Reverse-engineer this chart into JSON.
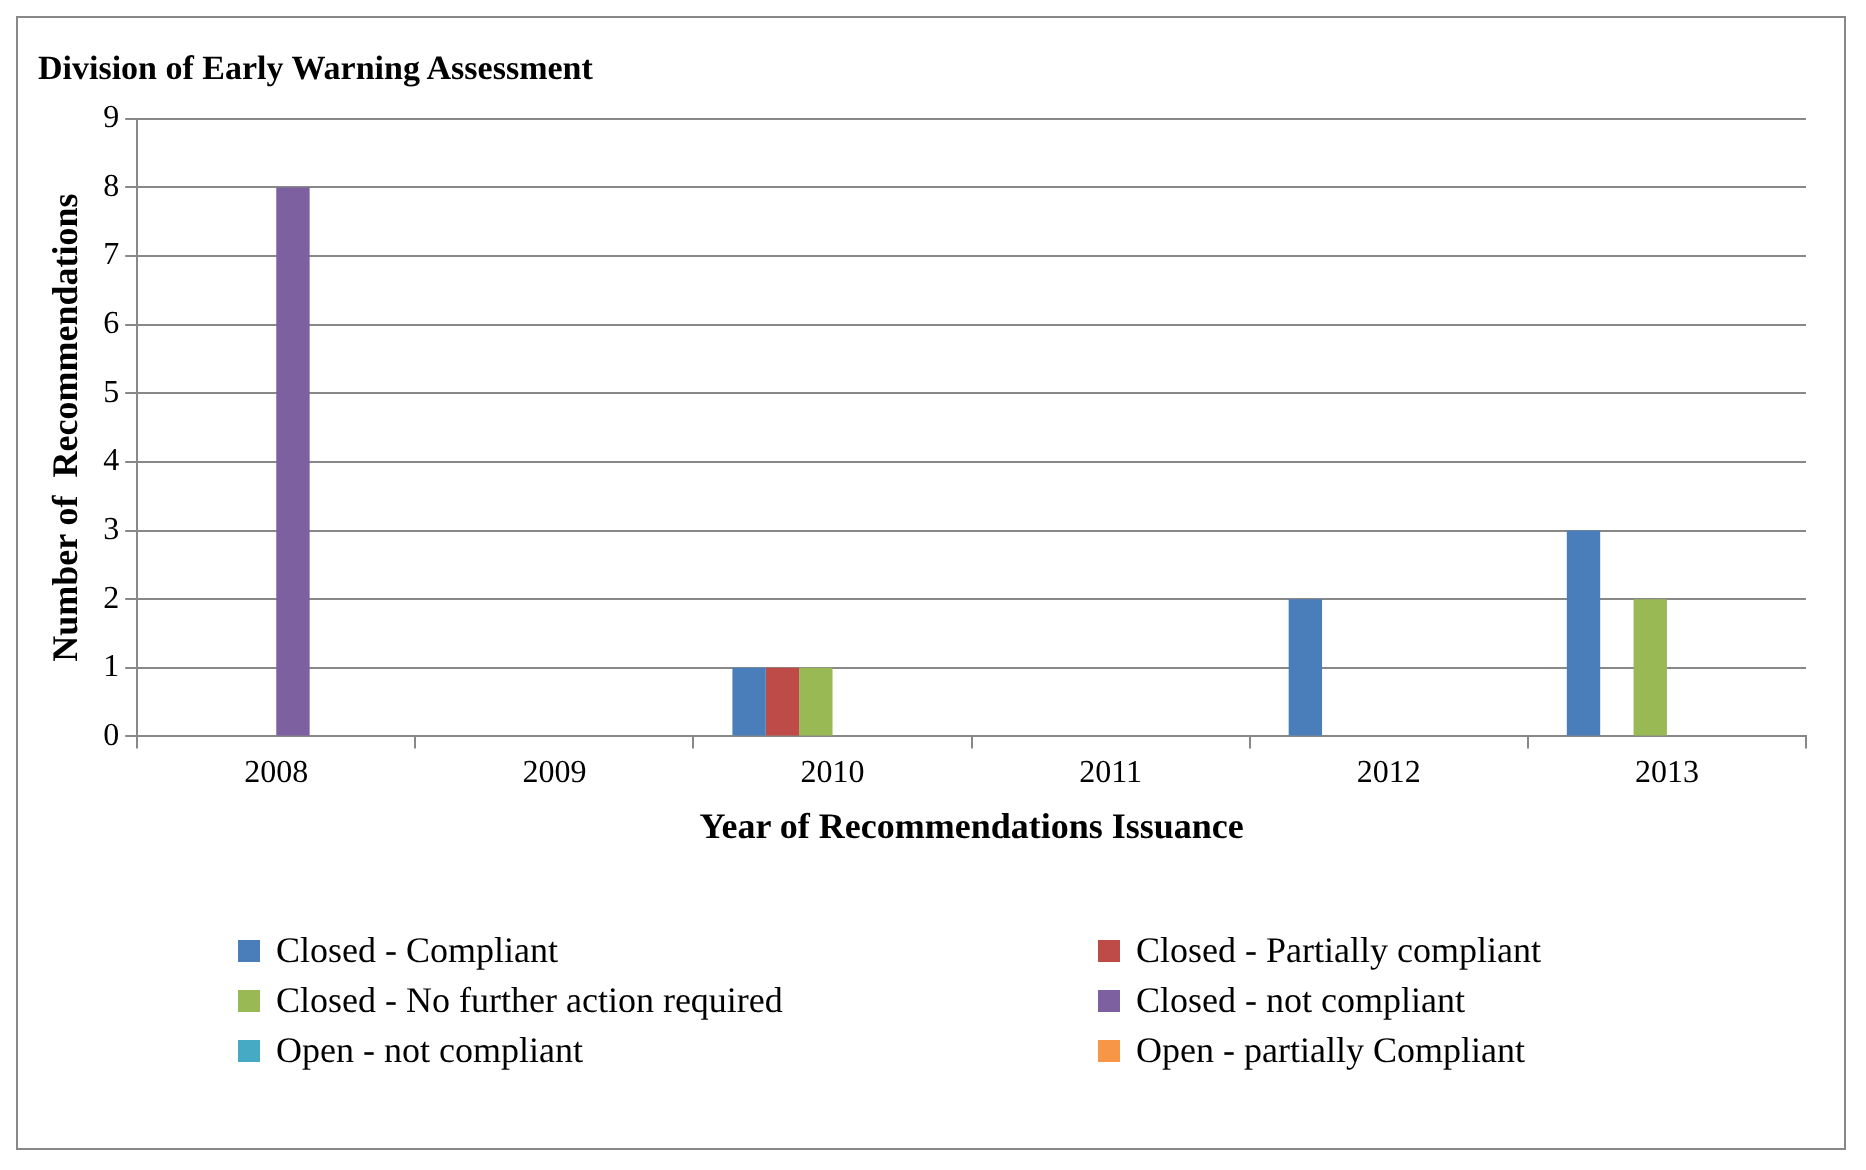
{
  "chart_data": {
    "type": "bar",
    "title": "Division of Early Warning Assessment",
    "xlabel": "Year of Recommendations Issuance",
    "ylabel": "Number of  Recommendations",
    "categories": [
      "2008",
      "2009",
      "2010",
      "2011",
      "2012",
      "2013"
    ],
    "series": [
      {
        "name": "Closed - Compliant",
        "color": "#4a7ebb",
        "values": [
          0,
          0,
          1,
          0,
          2,
          3
        ]
      },
      {
        "name": "Closed - Partially compliant",
        "color": "#be4b48",
        "values": [
          0,
          0,
          1,
          0,
          0,
          0
        ]
      },
      {
        "name": "Closed - No further action required",
        "color": "#98b954",
        "values": [
          0,
          0,
          1,
          0,
          0,
          2
        ]
      },
      {
        "name": "Closed - not compliant",
        "color": "#7d60a0",
        "values": [
          8,
          0,
          0,
          0,
          0,
          0
        ]
      },
      {
        "name": "Open - not compliant",
        "color": "#46aac5",
        "values": [
          0,
          0,
          0,
          0,
          0,
          0
        ]
      },
      {
        "name": "Open - partially Compliant",
        "color": "#f79646",
        "values": [
          0,
          0,
          0,
          0,
          0,
          0
        ]
      }
    ],
    "ylim": [
      0,
      9
    ],
    "yticks": [
      0,
      1,
      2,
      3,
      4,
      5,
      6,
      7,
      8,
      9
    ],
    "grid": "y",
    "legend": "bottom"
  }
}
